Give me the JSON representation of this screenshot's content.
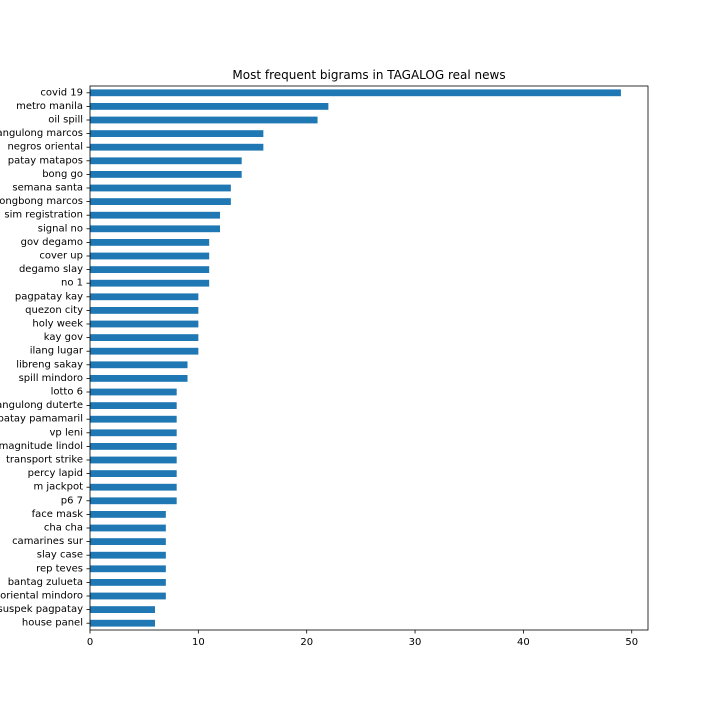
{
  "chart_data": {
    "type": "bar",
    "orientation": "horizontal",
    "title": "Most frequent bigrams in TAGALOG real news",
    "xlabel": "",
    "ylabel": "",
    "xlim": [
      0,
      51.5
    ],
    "xticks": [
      0,
      10,
      20,
      30,
      40,
      50
    ],
    "grid": false,
    "bar_color": "#1f77b4",
    "categories": [
      "covid 19",
      "metro manila",
      "oil spill",
      "pangulong marcos",
      "negros oriental",
      "patay matapos",
      "bong go",
      "semana santa",
      "bongbong marcos",
      "sim registration",
      "signal no",
      "gov degamo",
      "cover up",
      "degamo slay",
      "no 1",
      "pagpatay kay",
      "quezon city",
      "holy week",
      "kay gov",
      "ilang lugar",
      "libreng sakay",
      "spill mindoro",
      "lotto 6",
      "pangulong duterte",
      "patay pamamaril",
      "vp leni",
      "magnitude lindol",
      "transport strike",
      "percy lapid",
      "m jackpot",
      "p6 7",
      "face mask",
      "cha cha",
      "camarines sur",
      "slay case",
      "rep teves",
      "bantag zulueta",
      "oriental mindoro",
      "suspek pagpatay",
      "house panel"
    ],
    "values": [
      49,
      22,
      21,
      16,
      16,
      14,
      14,
      13,
      13,
      12,
      12,
      11,
      11,
      11,
      11,
      10,
      10,
      10,
      10,
      10,
      9,
      9,
      8,
      8,
      8,
      8,
      8,
      8,
      8,
      8,
      8,
      7,
      7,
      7,
      7,
      7,
      7,
      7,
      6,
      6
    ]
  }
}
